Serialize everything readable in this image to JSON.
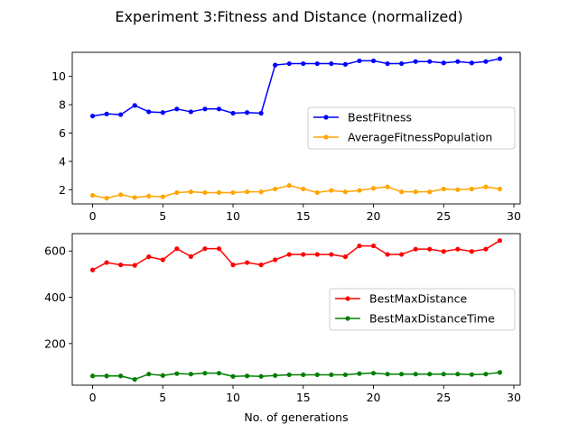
{
  "title": "Experiment 3:Fitness and Distance (normalized)",
  "chart_data": [
    {
      "type": "line",
      "x": [
        0,
        1,
        2,
        3,
        4,
        5,
        6,
        7,
        8,
        9,
        10,
        11,
        12,
        13,
        14,
        15,
        16,
        17,
        18,
        19,
        20,
        21,
        22,
        23,
        24,
        25,
        26,
        27,
        28,
        29
      ],
      "xlim": [
        -1.45,
        30.45
      ],
      "xticks": [
        0,
        5,
        10,
        15,
        20,
        25,
        30
      ],
      "ylim": [
        1.0,
        11.7
      ],
      "yticks": [
        2,
        4,
        6,
        8,
        10
      ],
      "xlabel": "",
      "ylabel": "",
      "grid": false,
      "legend_position": "center-right",
      "series": [
        {
          "name": "BestFitness",
          "color": "#0000ff",
          "values": [
            7.2,
            7.35,
            7.3,
            7.95,
            7.5,
            7.45,
            7.7,
            7.5,
            7.7,
            7.7,
            7.4,
            7.45,
            7.4,
            10.8,
            10.9,
            10.9,
            10.9,
            10.9,
            10.85,
            11.1,
            11.1,
            10.9,
            10.9,
            11.05,
            11.05,
            10.95,
            11.05,
            10.95,
            11.05,
            11.25
          ]
        },
        {
          "name": "AverageFitnessPopulation",
          "color": "#ffa500",
          "values": [
            1.6,
            1.4,
            1.65,
            1.45,
            1.55,
            1.5,
            1.8,
            1.85,
            1.8,
            1.8,
            1.8,
            1.85,
            1.85,
            2.05,
            2.3,
            2.05,
            1.8,
            1.95,
            1.85,
            1.95,
            2.1,
            2.2,
            1.85,
            1.85,
            1.85,
            2.05,
            2.0,
            2.05,
            2.2,
            2.05
          ]
        }
      ]
    },
    {
      "type": "line",
      "x": [
        0,
        1,
        2,
        3,
        4,
        5,
        6,
        7,
        8,
        9,
        10,
        11,
        12,
        13,
        14,
        15,
        16,
        17,
        18,
        19,
        20,
        21,
        22,
        23,
        24,
        25,
        26,
        27,
        28,
        29
      ],
      "xlim": [
        -1.45,
        30.45
      ],
      "xticks": [
        0,
        5,
        10,
        15,
        20,
        25,
        30
      ],
      "ylim": [
        20,
        675
      ],
      "yticks": [
        200,
        400,
        600
      ],
      "xlabel": "No. of generations",
      "ylabel": "",
      "grid": false,
      "legend_position": "center-right",
      "series": [
        {
          "name": "BestMaxDistance",
          "color": "#ff0000",
          "values": [
            518,
            550,
            540,
            538,
            575,
            562,
            610,
            576,
            610,
            610,
            540,
            550,
            540,
            562,
            585,
            585,
            585,
            585,
            575,
            622,
            622,
            585,
            585,
            608,
            608,
            598,
            608,
            598,
            608,
            645
          ]
        },
        {
          "name": "BestMaxDistanceTime",
          "color": "#008000",
          "values": [
            60,
            60,
            60,
            45,
            68,
            62,
            70,
            68,
            72,
            72,
            58,
            60,
            58,
            62,
            65,
            65,
            65,
            65,
            65,
            70,
            72,
            68,
            68,
            68,
            68,
            68,
            68,
            66,
            68,
            75
          ]
        }
      ]
    }
  ]
}
